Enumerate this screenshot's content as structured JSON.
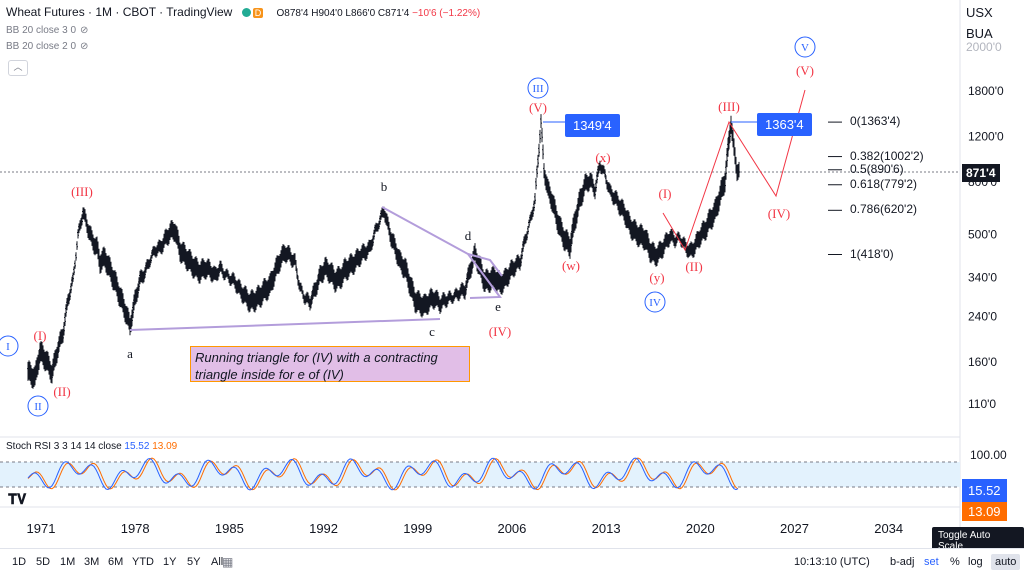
{
  "legend": {
    "symbol": "Wheat Futures",
    "sep": " · ",
    "interval": "1M",
    "exchange": "CBOT",
    "source": "TradingView",
    "badge": "D",
    "open": "O878'4",
    "high": "H904'0",
    "low": "L866'0",
    "close": "C871'4",
    "change": "−10'6 (−1.22%)",
    "indicator1": "BB 20 close 3 0",
    "indicator2": "BB 20 close 2 0"
  },
  "currency": {
    "line1": "USX",
    "line2": "BUA"
  },
  "y_axis": [
    {
      "label": "1800'0",
      "y": 1800
    },
    {
      "label": "1200'0",
      "y": 1200
    },
    {
      "label": "800'0",
      "y": 800
    },
    {
      "label": "500'0",
      "y": 500
    },
    {
      "label": "340'0",
      "y": 340
    },
    {
      "label": "240'0",
      "y": 240
    },
    {
      "label": "160'0",
      "y": 160
    },
    {
      "label": "110'0",
      "y": 110
    }
  ],
  "y_axis_top_partial": "2000'0",
  "current_price": "871'4",
  "x_axis": [
    {
      "label": "1971",
      "year": 1971
    },
    {
      "label": "1978",
      "year": 1978
    },
    {
      "label": "1985",
      "year": 1985
    },
    {
      "label": "1992",
      "year": 1992
    },
    {
      "label": "1999",
      "year": 1999
    },
    {
      "label": "2006",
      "year": 2006
    },
    {
      "label": "2013",
      "year": 2013
    },
    {
      "label": "2020",
      "year": 2020
    },
    {
      "label": "2027",
      "year": 2027
    },
    {
      "label": "2034",
      "year": 2034
    }
  ],
  "price_callouts": {
    "high_2008": "1349'4",
    "high_2022": "1363'4"
  },
  "fib_levels": [
    {
      "label": "0(1363'4)",
      "value": 1363.5
    },
    {
      "label": "0.382(1002'2)",
      "value": 1002.25
    },
    {
      "label": "0.5(890'6)",
      "value": 890.75
    },
    {
      "label": "0.618(779'2)",
      "value": 779.25
    },
    {
      "label": "0.786(620'2)",
      "value": 620.25
    },
    {
      "label": "1(418'0)",
      "value": 418
    }
  ],
  "wave_labels": {
    "I": "I",
    "II": "II",
    "III": "III",
    "IV": "IV",
    "V": "V",
    "p1": "(I)",
    "p2": "(II)",
    "p3": "(III)",
    "p4": "(IV)",
    "p5": "(V)",
    "a": "a",
    "b": "b",
    "c": "c",
    "d": "d",
    "e": "e",
    "w": "(w)",
    "x": "(x)",
    "y": "(y)",
    "n1": "(I)",
    "n2": "(II)",
    "n3": "(III)",
    "n4": "(IV)",
    "n5": "(V)"
  },
  "annotation": "Running triangle for (IV) with a contracting triangle inside for e of (IV)",
  "stoch": {
    "name": "Stoch RSI 3 3 14 14 close",
    "k": "15.52",
    "d": "13.09",
    "axis_100": "100.00"
  },
  "bottom": {
    "timeframes": [
      "1D",
      "5D",
      "1M",
      "3M",
      "6M",
      "YTD",
      "1Y",
      "5Y",
      "All"
    ],
    "time": "10:13:10 (UTC)",
    "badj": "b-adj",
    "set": "set",
    "pct": "%",
    "log": "log",
    "auto": "auto",
    "tooltip": "Toggle Auto Scale"
  },
  "colors": {
    "wave_red": "#f23645",
    "wave_blue": "#2962ff",
    "triangle": "#b39ddb",
    "stoch_k": "#2962ff",
    "stoch_d": "#ff6d00"
  }
}
